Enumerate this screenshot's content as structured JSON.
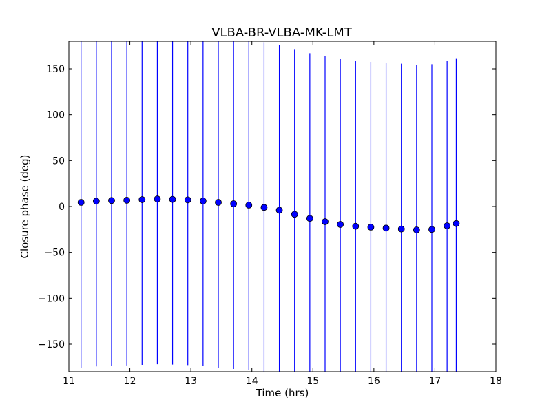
{
  "chart_data": {
    "type": "scatter",
    "title": "VLBA-BR-VLBA-MK-LMT",
    "xlabel": "Time (hrs)",
    "ylabel": "Closure phase (deg)",
    "xlim": [
      11,
      18
    ],
    "ylim": [
      -180,
      180
    ],
    "xticks": [
      11,
      12,
      13,
      14,
      15,
      16,
      17,
      18
    ],
    "yticks": [
      -150,
      -100,
      -50,
      0,
      50,
      100,
      150
    ],
    "xtick_labels": [
      "11",
      "12",
      "13",
      "14",
      "15",
      "16",
      "17",
      "18"
    ],
    "ytick_labels": [
      "−150",
      "−100",
      "−50",
      "0",
      "50",
      "100",
      "150"
    ],
    "grid": false,
    "marker_color": "#0000ff",
    "errorbar_color": "#0000ff",
    "points": [
      {
        "x": 11.2,
        "y": 4.5,
        "err": 180
      },
      {
        "x": 11.45,
        "y": 5.8,
        "err": 180
      },
      {
        "x": 11.7,
        "y": 6.5,
        "err": 180
      },
      {
        "x": 11.95,
        "y": 6.8,
        "err": 180
      },
      {
        "x": 12.2,
        "y": 7.5,
        "err": 180
      },
      {
        "x": 12.45,
        "y": 8.2,
        "err": 180
      },
      {
        "x": 12.7,
        "y": 7.8,
        "err": 180
      },
      {
        "x": 12.95,
        "y": 7.2,
        "err": 180
      },
      {
        "x": 13.2,
        "y": 6.0,
        "err": 180
      },
      {
        "x": 13.45,
        "y": 4.5,
        "err": 180
      },
      {
        "x": 13.7,
        "y": 3.0,
        "err": 180
      },
      {
        "x": 13.95,
        "y": 1.5,
        "err": 180
      },
      {
        "x": 14.2,
        "y": -1.0,
        "err": 180
      },
      {
        "x": 14.45,
        "y": -4.0,
        "err": 180
      },
      {
        "x": 14.7,
        "y": -8.5,
        "err": 180
      },
      {
        "x": 14.95,
        "y": -13.0,
        "err": 180
      },
      {
        "x": 15.2,
        "y": -16.5,
        "err": 180
      },
      {
        "x": 15.45,
        "y": -19.5,
        "err": 180
      },
      {
        "x": 15.7,
        "y": -21.5,
        "err": 180
      },
      {
        "x": 15.95,
        "y": -22.5,
        "err": 180
      },
      {
        "x": 16.2,
        "y": -23.5,
        "err": 180
      },
      {
        "x": 16.45,
        "y": -24.5,
        "err": 180
      },
      {
        "x": 16.7,
        "y": -25.5,
        "err": 180
      },
      {
        "x": 16.95,
        "y": -25.0,
        "err": 180
      },
      {
        "x": 17.2,
        "y": -21.0,
        "err": 180
      },
      {
        "x": 17.35,
        "y": -18.5,
        "err": 180
      }
    ]
  }
}
